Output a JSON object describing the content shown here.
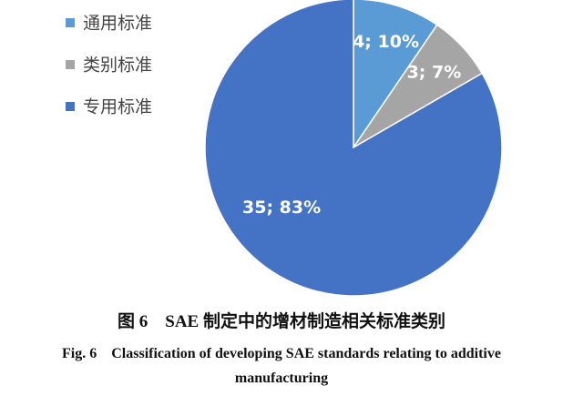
{
  "chart_data": {
    "type": "pie",
    "categories": [
      "通用标准",
      "类别标准",
      "专用标准"
    ],
    "values": [
      4,
      3,
      35
    ],
    "value_labels": [
      "4; 10%",
      "3; 7%",
      "35; 83%"
    ],
    "colors": [
      "#5b9bd5",
      "#a5a5a5",
      "#4472c4"
    ],
    "legend": "upper left",
    "caption_cn": "图 6　SAE 制定中的增材制造相关标准类别",
    "caption_en": "Fig. 6　Classification of developing SAE standards relating to additive manufacturing"
  }
}
